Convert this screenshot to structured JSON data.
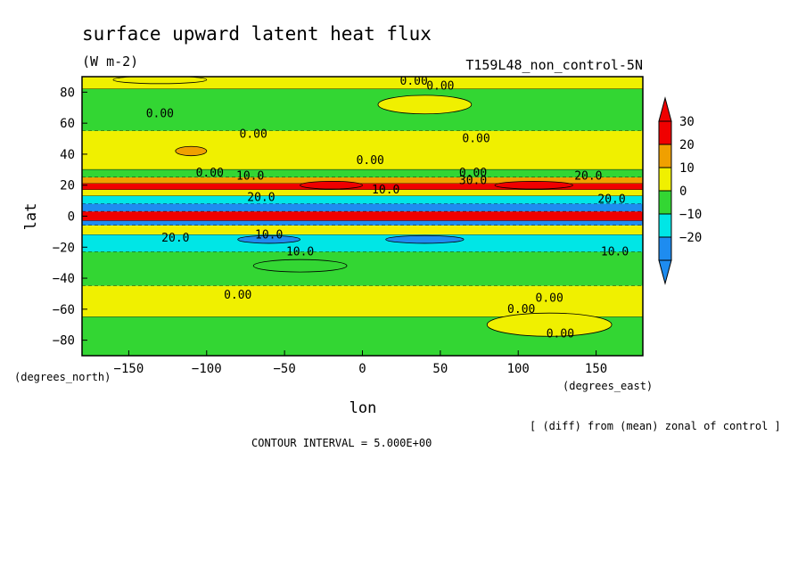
{
  "figure": {
    "title": "surface upward latent heat flux",
    "units": "(W m-2)",
    "run_label": "T159L48_non_control-5N",
    "note": "[ (diff) from (mean) zonal of control ]",
    "contour_interval": "CONTOUR INTERVAL = 5.000E+00",
    "x_units": "(degrees_east)",
    "y_units": "(degrees_north)"
  },
  "chart_data": {
    "type": "heatmap",
    "title": "surface upward latent heat flux",
    "xlabel": "lon",
    "ylabel": "lat",
    "xlim": [
      -180,
      180
    ],
    "ylim": [
      -90,
      90
    ],
    "xticks": [
      -150,
      -100,
      -50,
      0,
      50,
      100,
      150
    ],
    "yticks": [
      -80,
      -60,
      -40,
      -20,
      0,
      20,
      40,
      60,
      80
    ],
    "xtick_labels": [
      "-150",
      "-100",
      "-50",
      "0",
      "50",
      "100",
      "150"
    ],
    "ytick_labels": [
      "-80",
      "-60",
      "-40",
      "-20",
      "0",
      "20",
      "40",
      "60",
      "80"
    ],
    "colorbar": {
      "levels": [
        -20,
        -10,
        0,
        10,
        20,
        30
      ],
      "labels": [
        "-20",
        "-10",
        "0",
        "10",
        "20",
        "30"
      ],
      "colors": [
        "#1e8cf0",
        "#00e6e6",
        "#33d633",
        "#f0f000",
        "#f0a000",
        "#f00000"
      ],
      "under_color": "#1e8cf0",
      "over_color": "#f00000"
    },
    "bands": [
      {
        "lat_from": 90,
        "lat_to": 82,
        "level": 0
      },
      {
        "lat_from": 82,
        "lat_to": 55,
        "level": -5
      },
      {
        "lat_from": 55,
        "lat_to": 30,
        "level": 5
      },
      {
        "lat_from": 30,
        "lat_to": 25,
        "level": -5
      },
      {
        "lat_from": 25,
        "lat_to": 21,
        "level": 15
      },
      {
        "lat_from": 21,
        "lat_to": 17,
        "level": 25
      },
      {
        "lat_from": 17,
        "lat_to": 13,
        "level": 5
      },
      {
        "lat_from": 13,
        "lat_to": 8,
        "level": -15
      },
      {
        "lat_from": 8,
        "lat_to": 3,
        "level": -25
      },
      {
        "lat_from": 3,
        "lat_to": -3,
        "level": 35
      },
      {
        "lat_from": -3,
        "lat_to": -6,
        "level": -25
      },
      {
        "lat_from": -6,
        "lat_to": -12,
        "level": 5
      },
      {
        "lat_from": -12,
        "lat_to": -23,
        "level": -15
      },
      {
        "lat_from": -23,
        "lat_to": -45,
        "level": -5
      },
      {
        "lat_from": -45,
        "lat_to": -65,
        "level": 5
      },
      {
        "lat_from": -65,
        "lat_to": -90,
        "level": -5
      }
    ],
    "patches": [
      {
        "lon": -110,
        "lat": 42,
        "dlon": 20,
        "dlat": 6,
        "level": 15
      },
      {
        "lon": -20,
        "lat": 20,
        "dlon": 40,
        "dlat": 5,
        "level": 35
      },
      {
        "lon": 110,
        "lat": 20,
        "dlon": 50,
        "dlat": 5,
        "level": 35
      },
      {
        "lon": -60,
        "lat": -15,
        "dlon": 40,
        "dlat": 5,
        "level": -25
      },
      {
        "lon": 40,
        "lat": -15,
        "dlon": 50,
        "dlat": 5,
        "level": -25
      },
      {
        "lon": -40,
        "lat": -32,
        "dlon": 60,
        "dlat": 8,
        "level": -5
      },
      {
        "lon": 120,
        "lat": -70,
        "dlon": 80,
        "dlat": 15,
        "level": 5
      },
      {
        "lon": 40,
        "lat": 72,
        "dlon": 60,
        "dlat": 12,
        "level": 5
      },
      {
        "lon": -130,
        "lat": 88,
        "dlon": 60,
        "dlat": 5,
        "level": 5
      }
    ],
    "contour_labels": [
      {
        "text": "0.00",
        "lon": 33,
        "lat": 87
      },
      {
        "text": "0.00",
        "lon": 50,
        "lat": 84
      },
      {
        "text": "0.00",
        "lon": -130,
        "lat": 66
      },
      {
        "text": "0.00",
        "lon": -70,
        "lat": 53
      },
      {
        "text": "0.00",
        "lon": 73,
        "lat": 50
      },
      {
        "text": "0.00",
        "lon": 5,
        "lat": 36
      },
      {
        "text": "0.00",
        "lon": -98,
        "lat": 28
      },
      {
        "text": "0.00",
        "lon": 71,
        "lat": 28
      },
      {
        "text": "30.0",
        "lon": 71,
        "lat": 23
      },
      {
        "text": "20.0",
        "lon": 145,
        "lat": 26
      },
      {
        "text": "10.0",
        "lon": 15,
        "lat": 17
      },
      {
        "text": "20.0",
        "lon": 160,
        "lat": 11
      },
      {
        "text": "10.0",
        "lon": -72,
        "lat": 26
      },
      {
        "text": "20.0",
        "lon": -65,
        "lat": 12
      },
      {
        "text": "20.0",
        "lon": -120,
        "lat": -14
      },
      {
        "text": "10.0",
        "lon": -60,
        "lat": -12
      },
      {
        "text": "10.0",
        "lon": -40,
        "lat": -23
      },
      {
        "text": "10.0",
        "lon": 162,
        "lat": -23
      },
      {
        "text": "0.00",
        "lon": -80,
        "lat": -51
      },
      {
        "text": "0.00",
        "lon": 120,
        "lat": -53
      },
      {
        "text": "0.00",
        "lon": 102,
        "lat": -60
      },
      {
        "text": "0.00",
        "lon": 127,
        "lat": -76
      }
    ]
  }
}
